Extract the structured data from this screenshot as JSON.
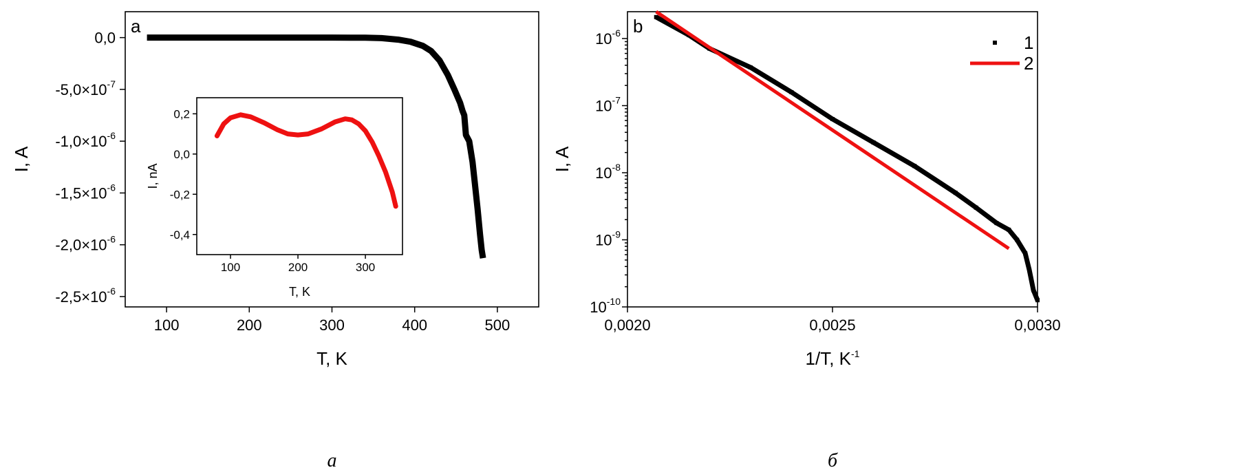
{
  "chart_data": [
    {
      "type": "line",
      "panel_label": "a",
      "caption": "а",
      "xlabel": "T, K",
      "ylabel": "I, A",
      "xlim": [
        50,
        550
      ],
      "ylim": [
        -2.6e-06,
        2.5e-07
      ],
      "x_ticks": [
        100,
        200,
        300,
        400,
        500
      ],
      "x_tick_labels": [
        "100",
        "200",
        "300",
        "400",
        "500"
      ],
      "y_ticks": [
        0,
        -5e-07,
        -1e-06,
        -1.5e-06,
        -2e-06,
        -2.5e-06
      ],
      "y_tick_labels": [
        {
          "mant": "0,0",
          "exp": ""
        },
        {
          "mant": "-5,0×10",
          "exp": "-7"
        },
        {
          "mant": "-1,0×10",
          "exp": "-6"
        },
        {
          "mant": "-1,5×10",
          "exp": "-6"
        },
        {
          "mant": "-2,0×10",
          "exp": "-6"
        },
        {
          "mant": "-2,5×10",
          "exp": "-6"
        }
      ],
      "series": [
        {
          "color": "#000000",
          "points": [
            [
              80,
              0
            ],
            [
              200,
              0
            ],
            [
              300,
              0
            ],
            [
              340,
              -1e-09
            ],
            [
              360,
              -5e-09
            ],
            [
              380,
              -2e-08
            ],
            [
              395,
              -4e-08
            ],
            [
              410,
              -8e-08
            ],
            [
              420,
              -1.3e-07
            ],
            [
              430,
              -2.2e-07
            ],
            [
              440,
              -3.6e-07
            ],
            [
              448,
              -5e-07
            ],
            [
              455,
              -6.3e-07
            ],
            [
              458,
              -7.1e-07
            ],
            [
              460,
              -7.5e-07
            ],
            [
              462,
              -9.4e-07
            ],
            [
              466,
              -1e-06
            ],
            [
              470,
              -1.2e-06
            ],
            [
              473,
              -1.42e-06
            ],
            [
              476,
              -1.65e-06
            ],
            [
              479,
              -1.9e-06
            ],
            [
              481,
              -2.05e-06
            ],
            [
              482,
              -2.1e-06
            ]
          ]
        }
      ],
      "inset": {
        "type": "line",
        "xlabel": "T, K",
        "ylabel": "I, nA",
        "xlim": [
          50,
          355
        ],
        "ylim": [
          -0.5,
          0.28
        ],
        "x_ticks": [
          100,
          200,
          300
        ],
        "x_tick_labels": [
          "100",
          "200",
          "300"
        ],
        "y_ticks": [
          0.2,
          0,
          -0.2,
          -0.4
        ],
        "y_tick_labels": [
          "0,2",
          "0,0",
          "-0,2",
          "-0,4"
        ],
        "series": [
          {
            "color": "#ee1111",
            "points": [
              [
                80,
                0.09
              ],
              [
                90,
                0.15
              ],
              [
                100,
                0.18
              ],
              [
                115,
                0.195
              ],
              [
                130,
                0.185
              ],
              [
                150,
                0.155
              ],
              [
                170,
                0.12
              ],
              [
                185,
                0.1
              ],
              [
                200,
                0.095
              ],
              [
                215,
                0.1
              ],
              [
                235,
                0.125
              ],
              [
                255,
                0.16
              ],
              [
                270,
                0.175
              ],
              [
                280,
                0.17
              ],
              [
                290,
                0.15
              ],
              [
                300,
                0.115
              ],
              [
                310,
                0.06
              ],
              [
                320,
                -0.01
              ],
              [
                330,
                -0.09
              ],
              [
                340,
                -0.19
              ],
              [
                345,
                -0.26
              ]
            ]
          }
        ]
      }
    },
    {
      "type": "scatter",
      "panel_label": "b",
      "caption": "б",
      "xlabel": "1/T, K",
      "xlabel_sup": "-1",
      "ylabel": "I, A",
      "y_scale": "log",
      "xlim": [
        0.002,
        0.003
      ],
      "ylim_exp": [
        -10,
        -5.6
      ],
      "x_ticks": [
        0.002,
        0.0025,
        0.003
      ],
      "x_tick_labels": [
        "0,0020",
        "0,0025",
        "0,0030"
      ],
      "y_ticks_exp": [
        -6,
        -7,
        -8,
        -9,
        -10
      ],
      "y_tick_labels": [
        {
          "mant": "10",
          "exp": "-6"
        },
        {
          "mant": "10",
          "exp": "-7"
        },
        {
          "mant": "10",
          "exp": "-8"
        },
        {
          "mant": "10",
          "exp": "-9"
        },
        {
          "mant": "10",
          "exp": "-10"
        }
      ],
      "legend_position": "top-right",
      "series": [
        {
          "name": "1",
          "color": "#000000",
          "style": "markers",
          "points": [
            [
              0.00207,
              -5.68
            ],
            [
              0.00215,
              -5.95
            ],
            [
              0.0022,
              -6.15
            ],
            [
              0.0023,
              -6.43
            ],
            [
              0.0024,
              -6.8
            ],
            [
              0.0025,
              -7.2
            ],
            [
              0.0026,
              -7.55
            ],
            [
              0.0027,
              -7.9
            ],
            [
              0.0028,
              -8.3
            ],
            [
              0.00285,
              -8.52
            ],
            [
              0.0029,
              -8.75
            ],
            [
              0.00293,
              -8.85
            ],
            [
              0.00295,
              -9.0
            ],
            [
              0.00297,
              -9.2
            ],
            [
              0.00298,
              -9.45
            ],
            [
              0.00299,
              -9.75
            ],
            [
              0.003,
              -9.9
            ]
          ]
        },
        {
          "name": "2",
          "color": "#ee1111",
          "style": "line",
          "points": [
            [
              0.00207,
              -5.6
            ],
            [
              0.00293,
              -9.13
            ]
          ]
        }
      ]
    }
  ]
}
